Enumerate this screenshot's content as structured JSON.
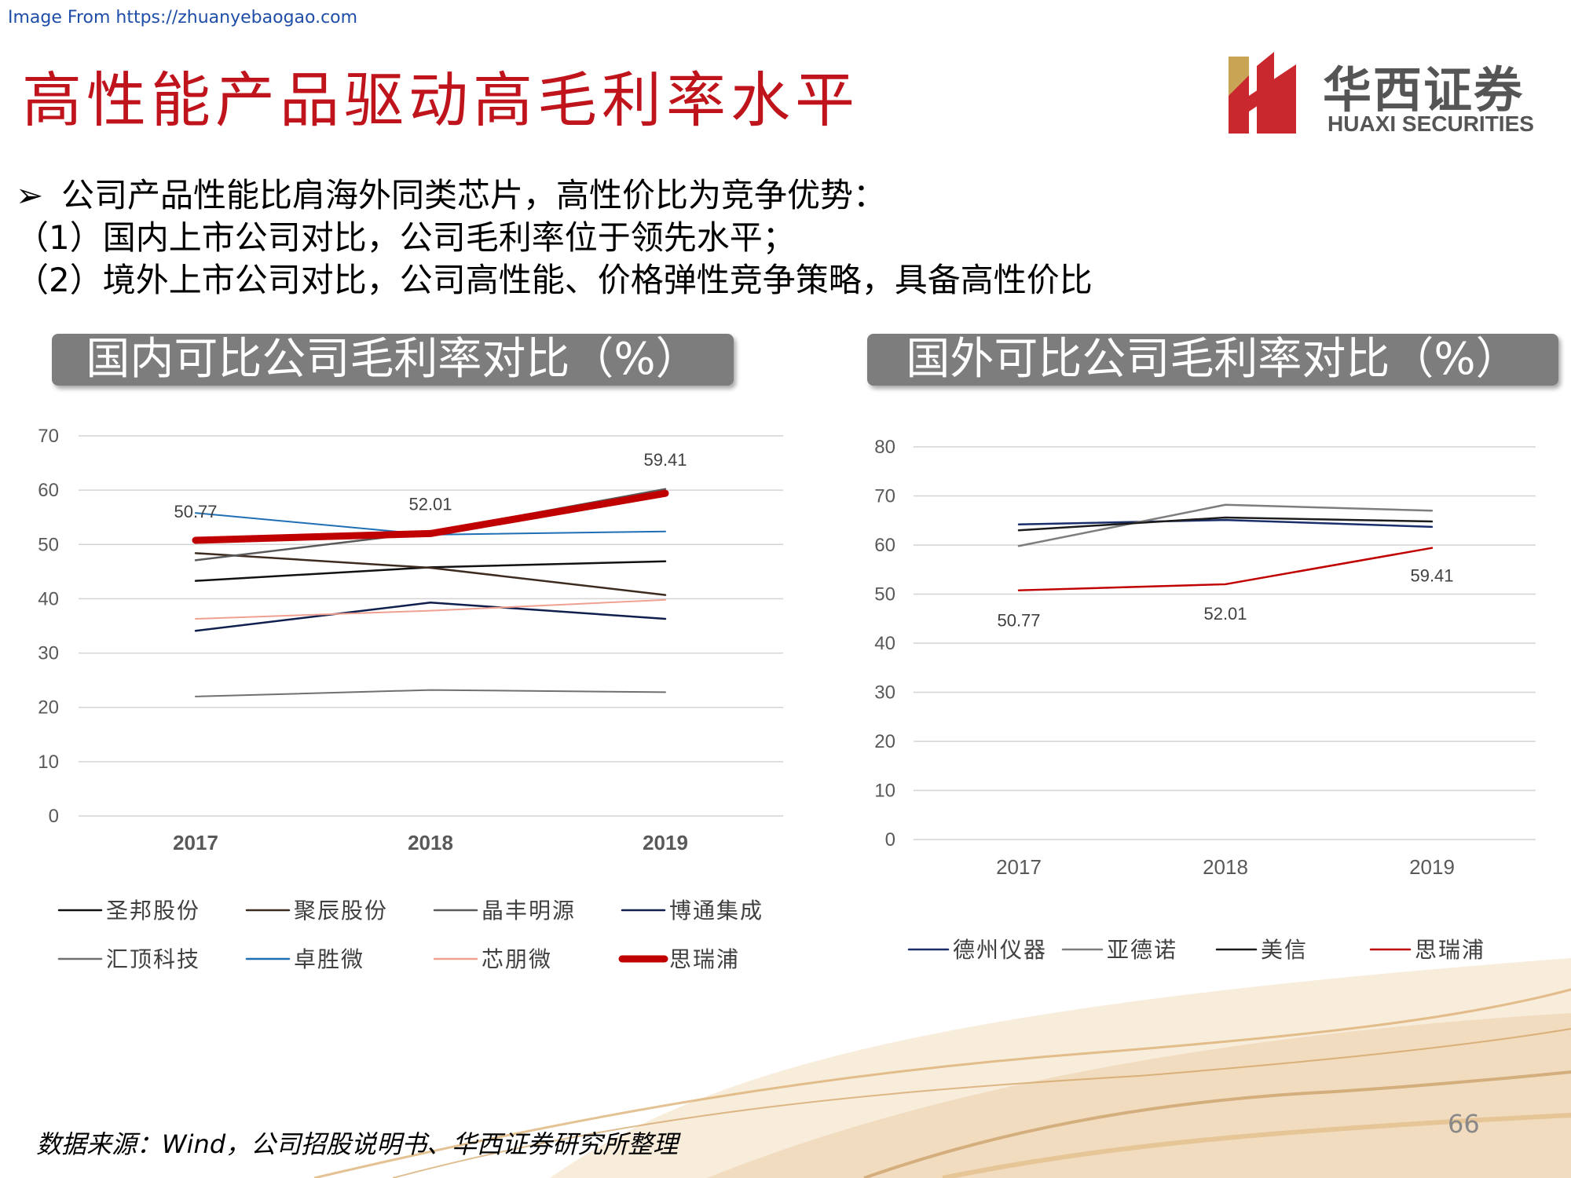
{
  "source_url": "Image From https://zhuanyebaogao.com",
  "title": "高性能产品驱动高毛利率水平",
  "logo": {
    "cn": "华西证券",
    "en": "HUAXI SECURITIES"
  },
  "bullets": {
    "arrow": "➢",
    "line1": "公司产品性能比肩海外同类芯片，高性价比为竞争优势：",
    "line2": "（1）国内上市公司对比，公司毛利率位于领先水平；",
    "line3": "（2）境外上市公司对比，公司高性能、价格弹性竞争策略，具备高性价比"
  },
  "footer_source": "数据来源：Wind，公司招股说明书、华西证券研究所整理",
  "page_number": "66",
  "colors": {
    "title_red": "#c0141c",
    "header_gray": "#7d7d7d"
  },
  "chart_data": [
    {
      "type": "line",
      "title": "国内可比公司毛利率对比（%）",
      "categories": [
        "2017",
        "2018",
        "2019"
      ],
      "ylim": [
        0,
        70
      ],
      "yticks": [
        0,
        10,
        20,
        30,
        40,
        50,
        60,
        70
      ],
      "grid": true,
      "legend_position": "bottom",
      "series": [
        {
          "name": "圣邦股份",
          "values": [
            43.3,
            45.8,
            46.9
          ],
          "color": "#111111",
          "width": 2.5
        },
        {
          "name": "聚辰股份",
          "values": [
            48.4,
            45.7,
            40.7
          ],
          "color": "#3d2b1f",
          "width": 2.5
        },
        {
          "name": "晶丰明源",
          "values": [
            47.1,
            52.3,
            60.2
          ],
          "color": "#5a5a5a",
          "width": 2.5
        },
        {
          "name": "博通集成",
          "values": [
            34.1,
            39.3,
            36.3
          ],
          "color": "#0f1f4d",
          "width": 2.5
        },
        {
          "name": "汇顶科技",
          "values": [
            22.0,
            23.2,
            22.8
          ],
          "color": "#707070",
          "width": 2
        },
        {
          "name": "卓胜微",
          "values": [
            55.8,
            51.8,
            52.4
          ],
          "color": "#1f6fb5",
          "width": 2
        },
        {
          "name": "芯朋微",
          "values": [
            36.3,
            37.8,
            39.8
          ],
          "color": "#f0a090",
          "width": 2
        },
        {
          "name": "思瑞浦",
          "values": [
            50.77,
            52.01,
            59.41
          ],
          "color": "#c00000",
          "width": 9,
          "labels": [
            "50.77",
            "52.01",
            "59.41"
          ]
        }
      ]
    },
    {
      "type": "line",
      "title": "国外可比公司毛利率对比（%）",
      "categories": [
        "2017",
        "2018",
        "2019"
      ],
      "ylim": [
        0,
        80
      ],
      "yticks": [
        0,
        10,
        20,
        30,
        40,
        50,
        60,
        70,
        80
      ],
      "grid": true,
      "legend_position": "bottom",
      "series": [
        {
          "name": "德州仪器",
          "values": [
            64.2,
            65.1,
            63.7
          ],
          "color": "#1a2e6b",
          "width": 2.5
        },
        {
          "name": "亚德诺",
          "values": [
            59.8,
            68.2,
            67.0
          ],
          "color": "#7d7d7d",
          "width": 2.5
        },
        {
          "name": "美信",
          "values": [
            63.0,
            65.6,
            64.8
          ],
          "color": "#1c1c1c",
          "width": 2.5
        },
        {
          "name": "思瑞浦",
          "values": [
            50.77,
            52.01,
            59.41
          ],
          "color": "#c00000",
          "width": 2.5,
          "labels": [
            "50.77",
            "52.01",
            "59.41"
          ]
        }
      ]
    }
  ]
}
